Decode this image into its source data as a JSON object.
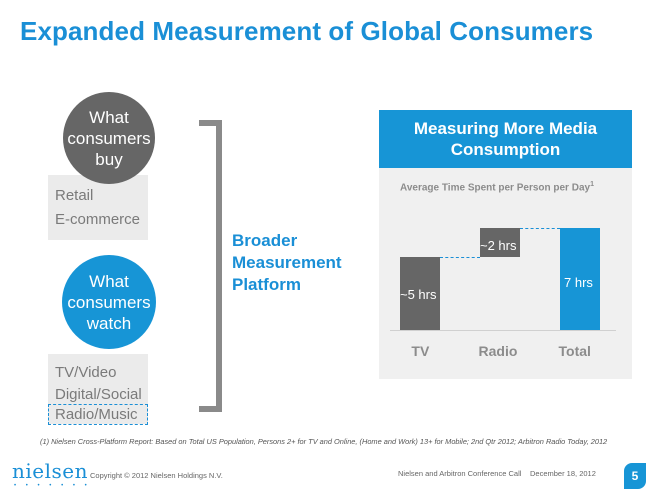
{
  "title": "Expanded Measurement of Global Consumers",
  "buy": {
    "circle_lines": [
      "What",
      "consumers",
      "buy"
    ],
    "items": [
      "Retail",
      "E-commerce"
    ]
  },
  "watch": {
    "circle_lines": [
      "What",
      "consumers",
      "watch"
    ],
    "items": [
      "TV/Video",
      "Digital/Social",
      "Radio/Music"
    ]
  },
  "platform_lines": [
    "Broader",
    "Measurement",
    "Platform"
  ],
  "panel": {
    "header_lines": [
      "Measuring More Media",
      "Consumption"
    ],
    "subtitle": "Average Time Spent per Person per Day",
    "subtitle_sup": "1"
  },
  "chart_data": {
    "type": "bar",
    "categories": [
      "TV",
      "Radio",
      "Total"
    ],
    "values": [
      5,
      2,
      7
    ],
    "value_labels": [
      "~5 hrs",
      "~2 hrs",
      "7 hrs"
    ],
    "stacked_waterfall": true,
    "colors": {
      "TV": "#666666",
      "Radio": "#666666",
      "Total": "#1795d6"
    }
  },
  "footnote": "(1) Nielsen Cross-Platform Report: Based on Total US Population, Persons 2+ for TV and Online, (Home and Work) 13+ for Mobile; 2nd Qtr 2012; Arbitron Radio Today, 2012",
  "footer": {
    "logo": "nielsen",
    "logo_dots": "• • • • • • •",
    "copyright": "Copyright © 2012 Nielsen Holdings N.V.",
    "conference": "Nielsen and Arbitron Conference Call",
    "date": "December 18, 2012",
    "page": "5"
  }
}
